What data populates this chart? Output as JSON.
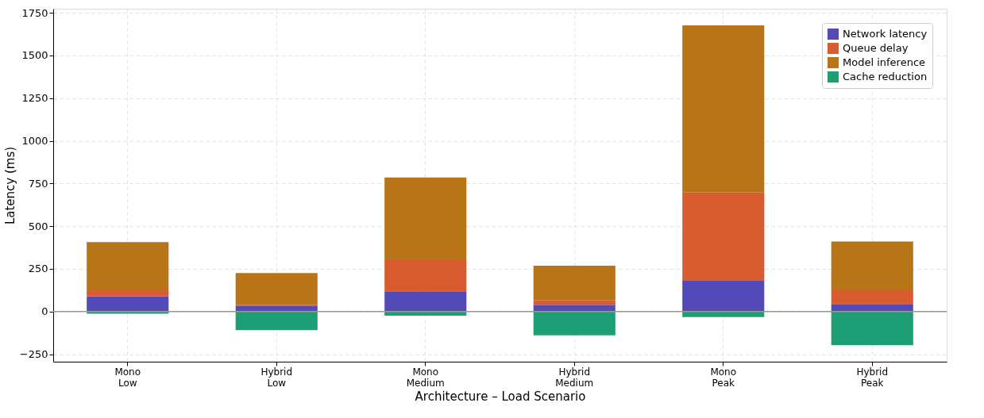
{
  "chart_data": {
    "type": "bar",
    "stacked": true,
    "xlabel": "Architecture – Load Scenario",
    "ylabel": "Latency (ms)",
    "categories": [
      "Mono\nLow",
      "Hybrid\nLow",
      "Mono\nMedium",
      "Hybrid\nMedium",
      "Mono\nPeak",
      "Hybrid\nPeak"
    ],
    "series": [
      {
        "name": "Network latency",
        "color": "#534ab8",
        "values": [
          88,
          35,
          119,
          40,
          183,
          44
        ]
      },
      {
        "name": "Queue delay",
        "color": "#d95b30",
        "values": [
          36,
          5,
          182,
          27,
          514,
          85
        ]
      },
      {
        "name": "Model inference",
        "color": "#b87518",
        "values": [
          283,
          185,
          484,
          201,
          979,
          281
        ]
      },
      {
        "name": "Cache reduction",
        "color": "#1d9e74",
        "values": [
          -13,
          -109,
          -25,
          -139,
          -33,
          -197
        ]
      }
    ],
    "ylim": [
      -294,
      1774
    ],
    "yticks": [
      -250,
      0,
      250,
      500,
      750,
      1000,
      1250,
      1500,
      1750
    ],
    "ref_lines": [
      {
        "axis": "y",
        "value": 0,
        "color": "#999999"
      }
    ],
    "grid": true,
    "legend": "top right"
  }
}
